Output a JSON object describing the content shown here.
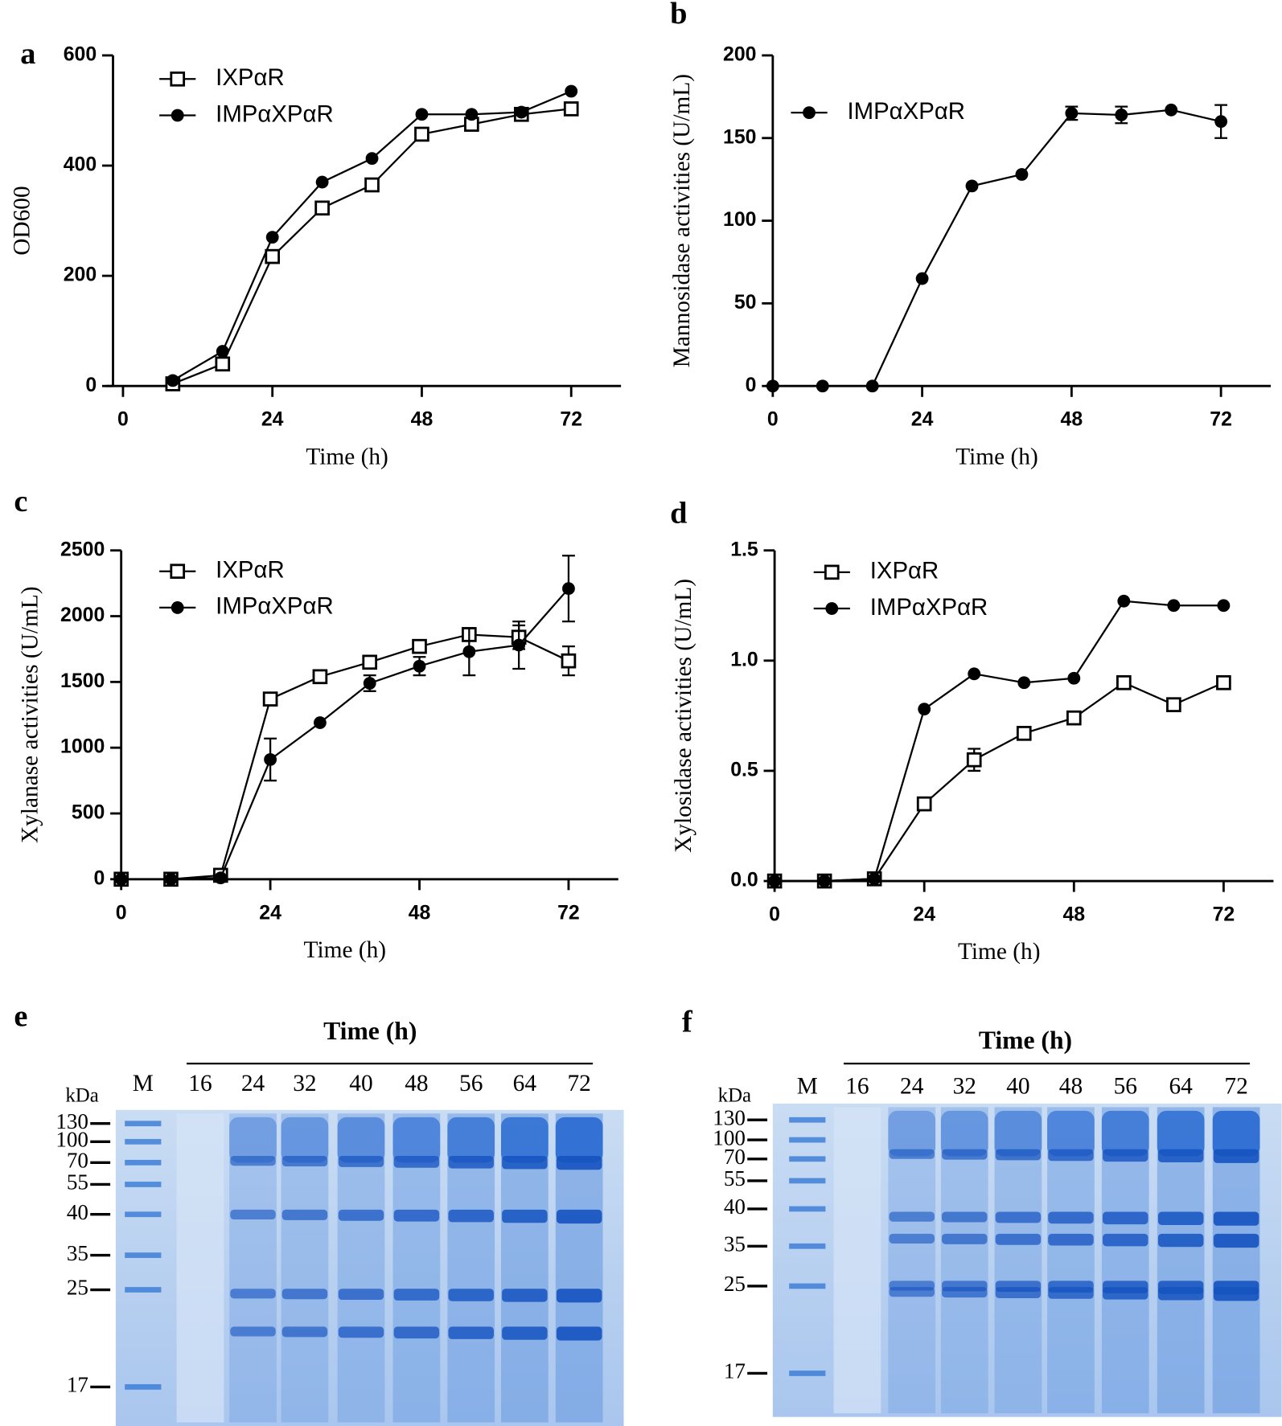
{
  "chart_data": [
    {
      "type": "line",
      "panel": "a",
      "x_label": "Time (h)",
      "y_label": "OD600",
      "x": [
        8,
        16,
        24,
        32,
        40,
        48,
        56,
        64,
        72
      ],
      "series": [
        {
          "name": "IXPαR",
          "color": "#000000",
          "marker": "open-square",
          "values": [
            4,
            40,
            235,
            323,
            365,
            457,
            475,
            493,
            503
          ]
        },
        {
          "name": "IMPαXPαR",
          "color": "#000000",
          "marker": "filled-circle",
          "values": [
            10,
            63,
            270,
            370,
            413,
            493,
            493,
            497,
            535
          ]
        }
      ],
      "xlim": [
        0,
        80
      ],
      "xticks": [
        0,
        24,
        48,
        72
      ],
      "ylim": [
        0,
        600
      ],
      "yticks": [
        0,
        200,
        400,
        600
      ]
    },
    {
      "type": "line",
      "panel": "b",
      "x_label": "Time (h)",
      "y_label": "Mannosidase activities (U/mL)",
      "x": [
        0,
        8,
        16,
        24,
        32,
        40,
        48,
        56,
        64,
        72
      ],
      "series": [
        {
          "name": "IMPαXPαR",
          "color": "#000000",
          "marker": "filled-circle",
          "values": [
            0,
            0,
            0,
            65,
            121,
            128,
            165,
            164,
            167,
            160
          ],
          "errors": [
            null,
            null,
            null,
            null,
            null,
            null,
            4,
            5,
            null,
            10
          ]
        }
      ],
      "xlim": [
        0,
        80
      ],
      "xticks": [
        0,
        24,
        48,
        72
      ],
      "ylim": [
        0,
        200
      ],
      "yticks": [
        0,
        50,
        100,
        150,
        200
      ]
    },
    {
      "type": "line",
      "panel": "c",
      "x_label": "Time (h)",
      "y_label": "Xylanase activities (U/mL)",
      "x": [
        0,
        8,
        16,
        24,
        32,
        40,
        48,
        56,
        64,
        72
      ],
      "series": [
        {
          "name": "IXPαR",
          "color": "#000000",
          "marker": "open-square",
          "values": [
            0,
            0,
            30,
            1370,
            1540,
            1650,
            1770,
            1860,
            1840,
            1660
          ],
          "errors": [
            null,
            null,
            null,
            null,
            null,
            null,
            null,
            null,
            90,
            110
          ]
        },
        {
          "name": "IMPαXPαR",
          "color": "#000000",
          "marker": "filled-circle",
          "values": [
            0,
            0,
            10,
            910,
            1190,
            1490,
            1620,
            1730,
            1780,
            2210
          ],
          "errors": [
            null,
            null,
            null,
            160,
            null,
            60,
            70,
            180,
            180,
            250
          ]
        }
      ],
      "xlim": [
        0,
        80
      ],
      "xticks": [
        0,
        24,
        48,
        72
      ],
      "ylim": [
        0,
        2500
      ],
      "yticks": [
        0,
        500,
        1000,
        1500,
        2000,
        2500
      ]
    },
    {
      "type": "line",
      "panel": "d",
      "x_label": "Time (h)",
      "y_label": "Xylosidase activities (U/mL)",
      "x": [
        0,
        8,
        16,
        24,
        32,
        40,
        48,
        56,
        64,
        72
      ],
      "series": [
        {
          "name": "IXPαR",
          "color": "#000000",
          "marker": "open-square",
          "values": [
            0,
            0,
            0.01,
            0.35,
            0.55,
            0.67,
            0.74,
            0.9,
            0.8,
            0.9
          ],
          "errors": [
            null,
            null,
            null,
            0.02,
            0.05,
            null,
            null,
            null,
            null,
            null
          ]
        },
        {
          "name": "IMPαXPαR",
          "color": "#000000",
          "marker": "filled-circle",
          "values": [
            0,
            0,
            0.01,
            0.78,
            0.94,
            0.9,
            0.92,
            1.27,
            1.25,
            1.25
          ]
        }
      ],
      "xlim": [
        0,
        80
      ],
      "xticks": [
        0,
        24,
        48,
        72
      ],
      "ylim": [
        0,
        1.5
      ],
      "yticks": [
        {
          "value": 0,
          "label": "0.0"
        },
        0.5,
        {
          "value": 1,
          "label": "1.0"
        },
        1.5
      ]
    }
  ],
  "gels": [
    {
      "panel": "e",
      "title": "Time (h)",
      "unit": "kDa",
      "lanes": [
        "M",
        "16",
        "24",
        "32",
        "40",
        "48",
        "56",
        "64",
        "72"
      ],
      "markers": [
        "130",
        "100",
        "70",
        "55",
        "40",
        "35",
        "25",
        "17"
      ]
    },
    {
      "panel": "f",
      "title": "Time (h)",
      "unit": "kDa",
      "lanes": [
        "M",
        "16",
        "24",
        "32",
        "40",
        "48",
        "56",
        "64",
        "72"
      ],
      "markers": [
        "130",
        "100",
        "70",
        "55",
        "40",
        "35",
        "25",
        "17"
      ]
    }
  ]
}
